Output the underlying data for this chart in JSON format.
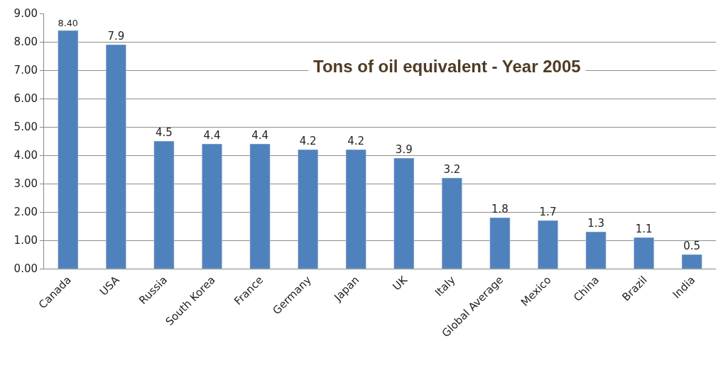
{
  "chart_data": {
    "type": "bar",
    "title": "Tons of oil equivalent - Year 2005",
    "categories": [
      "Canada",
      "USA",
      "Russia",
      "South Korea",
      "France",
      "Germany",
      "Japan",
      "UK",
      "Italy",
      "Global Average",
      "Mexico",
      "China",
      "Brazil",
      "India"
    ],
    "values": [
      8.4,
      7.9,
      4.5,
      4.4,
      4.4,
      4.2,
      4.2,
      3.9,
      3.2,
      1.8,
      1.7,
      1.3,
      1.1,
      0.5
    ],
    "value_labels": [
      "8.40",
      "7.9",
      "4.5",
      "4.4",
      "4.4",
      "4.2",
      "4.2",
      "3.9",
      "3.2",
      "1.8",
      "1.7",
      "1.3",
      "1.1",
      "0.5"
    ],
    "color": "#4f81bd",
    "ylim": [
      0,
      9
    ],
    "yticks": [
      {
        "value": 0,
        "label": "0.00"
      },
      {
        "value": 1,
        "label": "1.00"
      },
      {
        "value": 2,
        "label": "2.00"
      },
      {
        "value": 3,
        "label": "3.00"
      },
      {
        "value": 4,
        "label": "4.00"
      },
      {
        "value": 5,
        "label": "5.00"
      },
      {
        "value": 6,
        "label": "6.00"
      },
      {
        "value": 7,
        "label": "7.00"
      },
      {
        "value": 8,
        "label": "8.00"
      },
      {
        "value": 9,
        "label": "9.00"
      }
    ],
    "grid": "y",
    "legend": false
  }
}
